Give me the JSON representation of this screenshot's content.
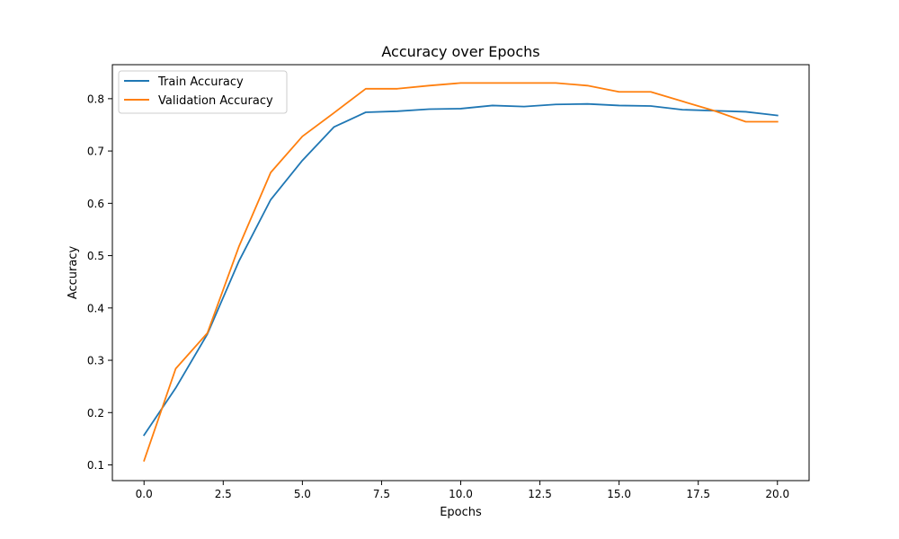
{
  "chart_data": {
    "type": "line",
    "title": "Accuracy over Epochs",
    "xlabel": "Epochs",
    "ylabel": "Accuracy",
    "xlim": [
      -1.0,
      21.0
    ],
    "ylim": [
      0.07,
      0.865
    ],
    "xticks": [
      0.0,
      2.5,
      5.0,
      7.5,
      10.0,
      12.5,
      15.0,
      17.5,
      20.0
    ],
    "xtick_labels": [
      "0.0",
      "2.5",
      "5.0",
      "7.5",
      "10.0",
      "12.5",
      "15.0",
      "17.5",
      "20.0"
    ],
    "yticks": [
      0.1,
      0.2,
      0.3,
      0.4,
      0.5,
      0.6,
      0.7,
      0.8
    ],
    "ytick_labels": [
      "0.1",
      "0.2",
      "0.3",
      "0.4",
      "0.5",
      "0.6",
      "0.7",
      "0.8"
    ],
    "grid": false,
    "legend": "upper-left",
    "x": [
      0,
      1,
      2,
      3,
      4,
      5,
      6,
      7,
      8,
      9,
      10,
      11,
      12,
      13,
      14,
      15,
      16,
      17,
      18,
      19,
      20
    ],
    "series": [
      {
        "name": "Train Accuracy",
        "color": "#1f77b4",
        "values": [
          0.157,
          0.247,
          0.35,
          0.49,
          0.607,
          0.682,
          0.746,
          0.774,
          0.776,
          0.78,
          0.781,
          0.787,
          0.785,
          0.789,
          0.79,
          0.787,
          0.786,
          0.779,
          0.777,
          0.775,
          0.768
        ]
      },
      {
        "name": "Validation Accuracy",
        "color": "#ff7f0e",
        "values": [
          0.108,
          0.284,
          0.352,
          0.518,
          0.659,
          0.728,
          0.773,
          0.819,
          0.819,
          0.825,
          0.83,
          0.83,
          0.83,
          0.83,
          0.825,
          0.813,
          0.813,
          0.795,
          0.777,
          0.756,
          0.756
        ]
      }
    ]
  }
}
